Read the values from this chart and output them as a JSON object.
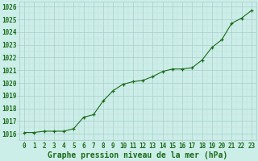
{
  "x": [
    0,
    1,
    2,
    3,
    4,
    5,
    6,
    7,
    8,
    9,
    10,
    11,
    12,
    13,
    14,
    15,
    16,
    17,
    18,
    19,
    20,
    21,
    22,
    23
  ],
  "y": [
    1016.1,
    1016.1,
    1016.2,
    1016.2,
    1016.2,
    1016.4,
    1017.3,
    1017.5,
    1018.6,
    1019.4,
    1019.9,
    1020.1,
    1020.2,
    1020.5,
    1020.9,
    1021.1,
    1021.1,
    1021.2,
    1021.8,
    1022.8,
    1023.4,
    1024.7,
    1025.1,
    1025.7
  ],
  "line_color": "#1a6b1a",
  "marker": "+",
  "bg_color": "#cceee8",
  "grid_major_color": "#aacccc",
  "grid_minor_color": "#c0ddd8",
  "ylabel_ticks": [
    1016,
    1017,
    1018,
    1019,
    1020,
    1021,
    1022,
    1023,
    1024,
    1025,
    1026
  ],
  "xlabel": "Graphe pression niveau de la mer (hPa)",
  "xlim": [
    -0.5,
    23.5
  ],
  "ylim": [
    1015.5,
    1026.4
  ],
  "tick_color": "#1a6b1a",
  "label_fontsize": 5.5,
  "xlabel_fontsize": 7.0
}
